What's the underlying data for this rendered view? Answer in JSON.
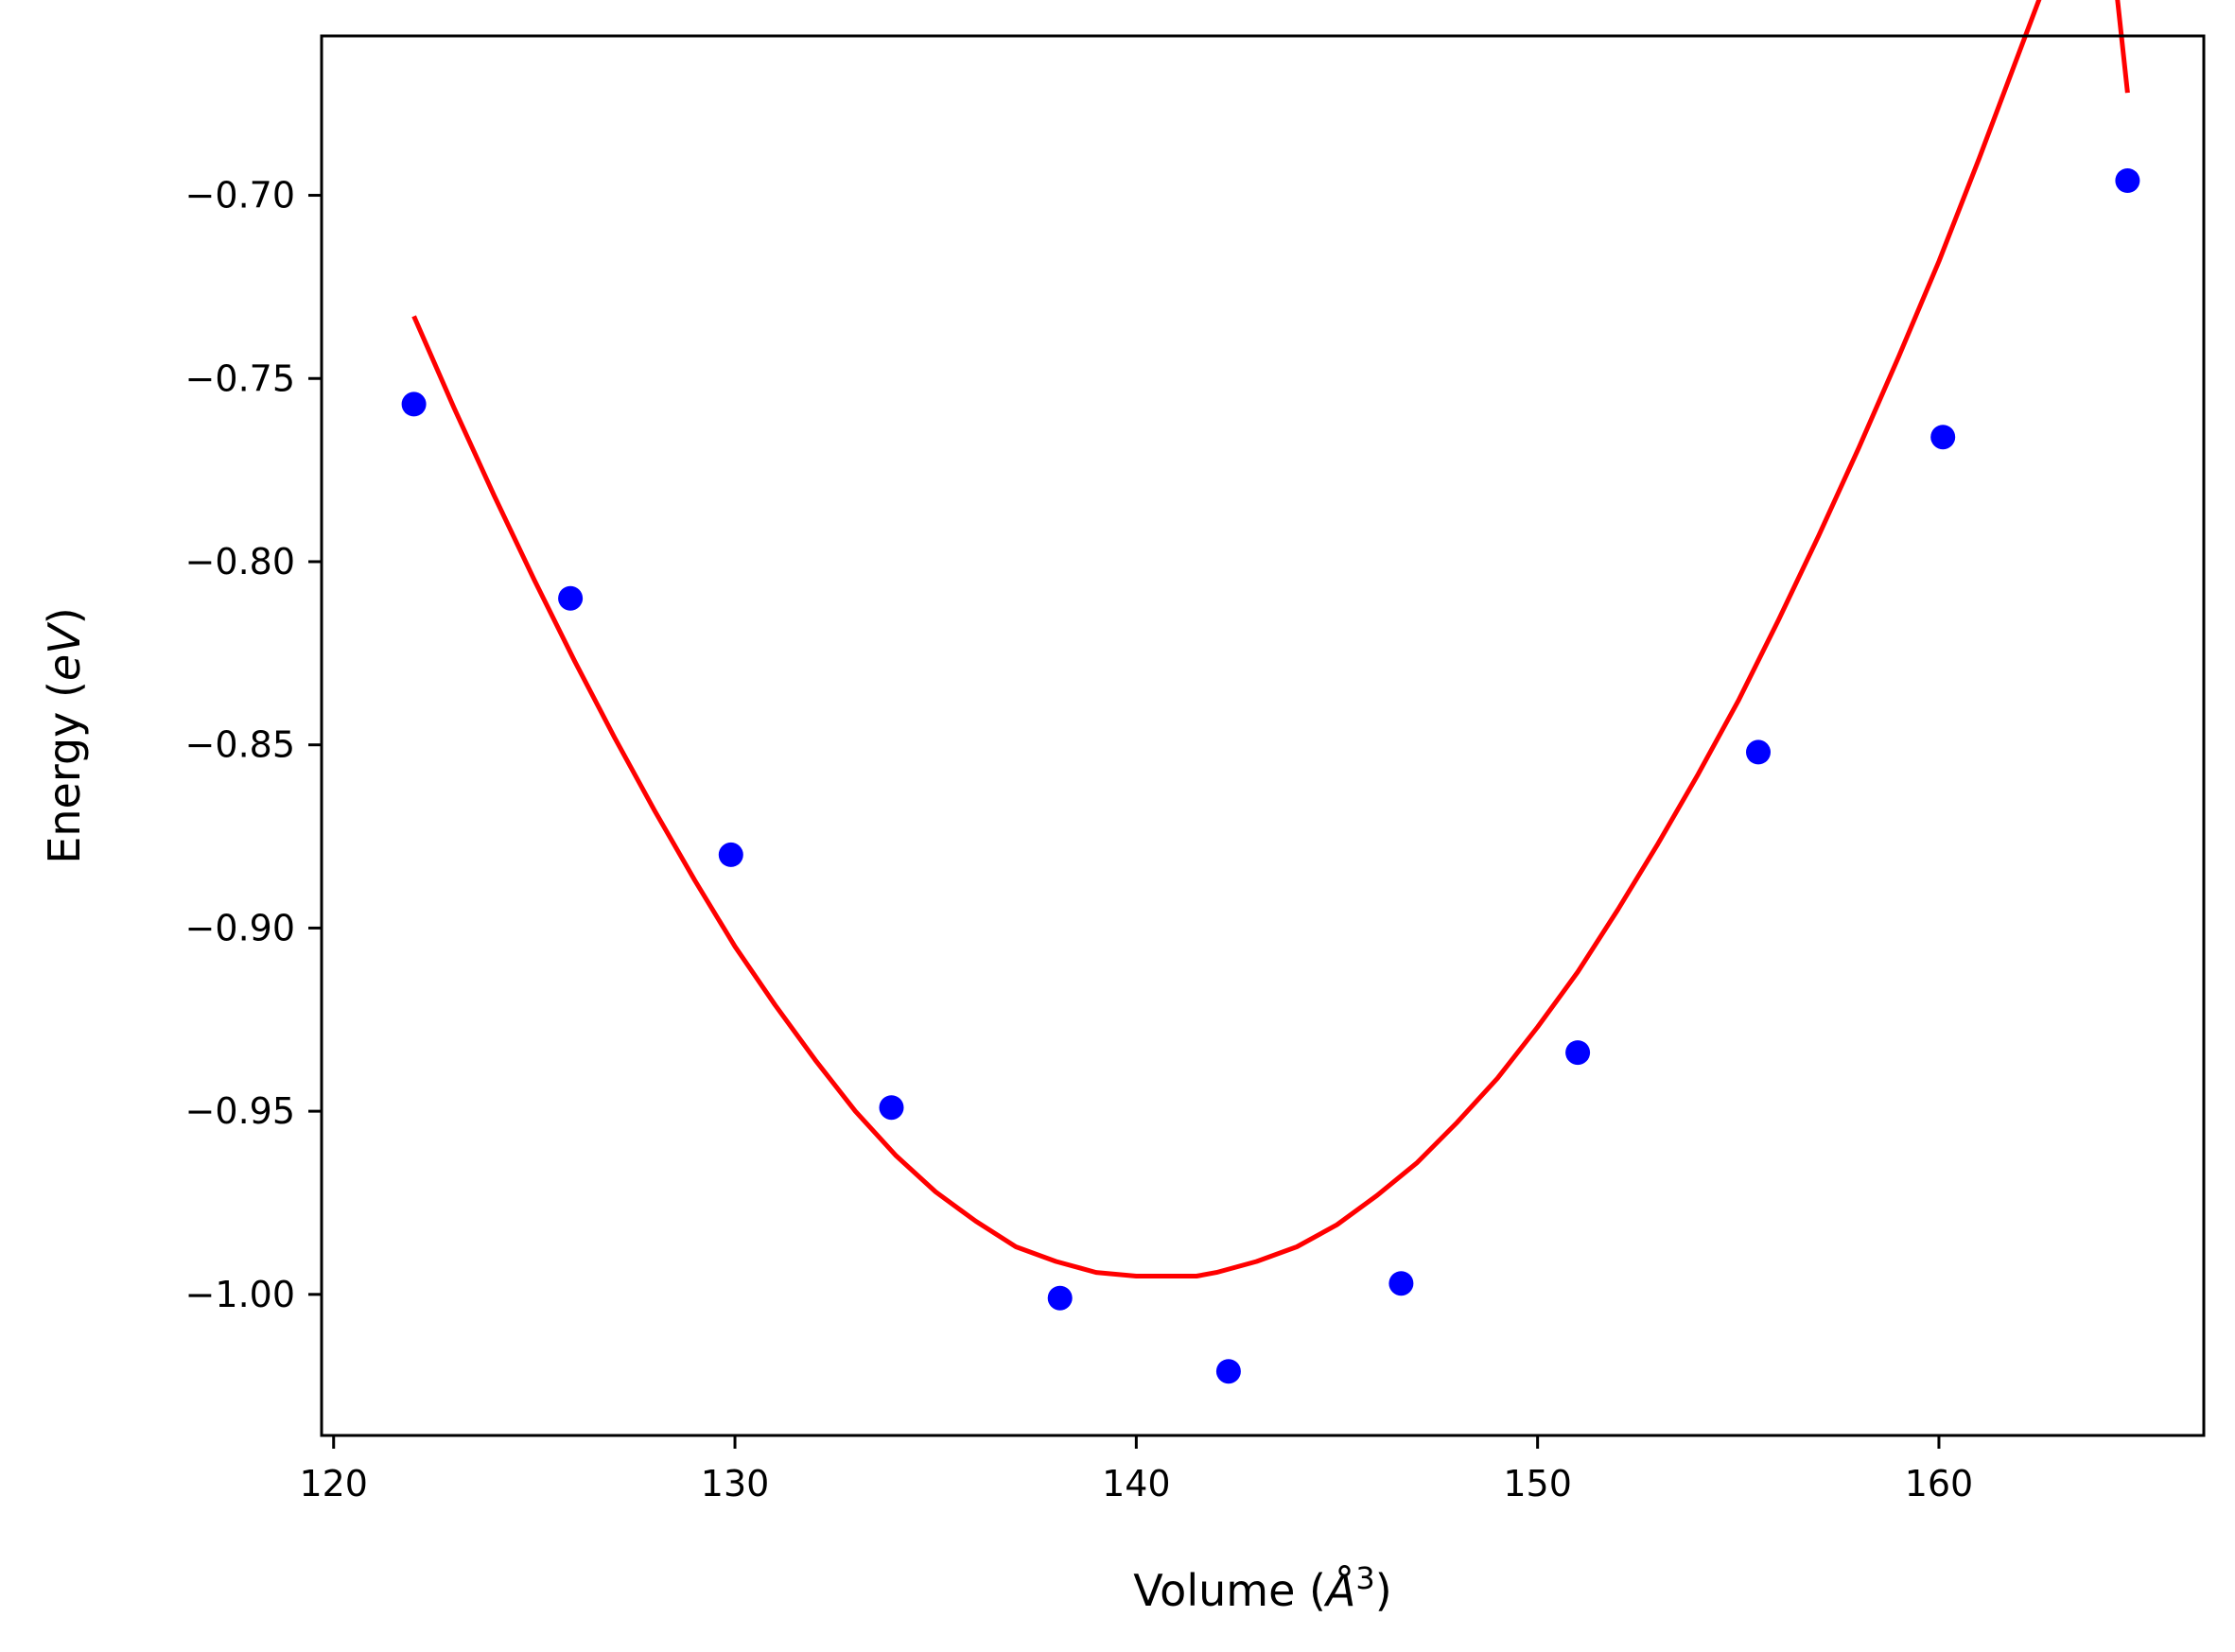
{
  "chart_data": {
    "type": "scatter",
    "title": "",
    "xlabel": "Volume (Å³)",
    "ylabel": "Energy (eV)",
    "xlabel_parts": [
      "Volume (",
      "Å",
      "3",
      ")"
    ],
    "ylabel_parts": [
      "Energy (",
      "eV",
      ")"
    ],
    "xlim": [
      119.7,
      166.6
    ],
    "ylim": [
      -1.0385,
      -0.6565
    ],
    "xticks": [
      120,
      130,
      140,
      150,
      160
    ],
    "xtick_labels": [
      "120",
      "130",
      "140",
      "150",
      "160"
    ],
    "yticks": [
      -1.0,
      -0.95,
      -0.9,
      -0.85,
      -0.8,
      -0.75,
      -0.7
    ],
    "ytick_labels": [
      "−1.00",
      "−0.95",
      "−0.90",
      "−0.85",
      "−0.80",
      "−0.75",
      "−0.70"
    ],
    "grid": false,
    "series": [
      {
        "kind": "points",
        "color": "#0000ff",
        "x": [
          122.0,
          125.9,
          129.9,
          133.9,
          138.1,
          142.3,
          146.6,
          151.0,
          155.5,
          160.1,
          164.7
        ],
        "y": [
          -0.757,
          -0.81,
          -0.88,
          -0.949,
          -1.001,
          -1.021,
          -0.997,
          -0.934,
          -0.852,
          -0.766,
          -0.696
        ]
      },
      {
        "kind": "fit-curve",
        "color": "#ff0000",
        "x": [
          122.0,
          123.0,
          124.0,
          125.0,
          126.0,
          127.0,
          128.0,
          129.0,
          130.0,
          131.0,
          132.0,
          133.0,
          134.0,
          135.0,
          136.0,
          137.0,
          138.0,
          139.0,
          140.0,
          141.0,
          141.5,
          142.0,
          143.0,
          144.0,
          145.0,
          146.0,
          147.0,
          148.0,
          149.0,
          150.0,
          151.0,
          152.0,
          153.0,
          154.0,
          155.0,
          156.0,
          157.0,
          158.0,
          159.0,
          160.0,
          161.0,
          162.0,
          163.0,
          164.0,
          164.7
        ],
        "y": [
          -0.733,
          -0.758,
          -0.782,
          -0.805,
          -0.827,
          -0.848,
          -0.868,
          -0.887,
          -0.905,
          -0.921,
          -0.936,
          -0.95,
          -0.962,
          -0.972,
          -0.98,
          -0.987,
          -0.991,
          -0.994,
          -0.995,
          -0.995,
          -0.995,
          -0.994,
          -0.991,
          -0.987,
          -0.981,
          -0.973,
          -0.964,
          -0.953,
          -0.941,
          -0.927,
          -0.912,
          -0.895,
          -0.877,
          -0.858,
          -0.838,
          -0.816,
          -0.793,
          -0.769,
          -0.744,
          -0.718,
          -0.69,
          -0.661,
          -0.632,
          -0.601,
          -0.672
        ]
      }
    ]
  }
}
